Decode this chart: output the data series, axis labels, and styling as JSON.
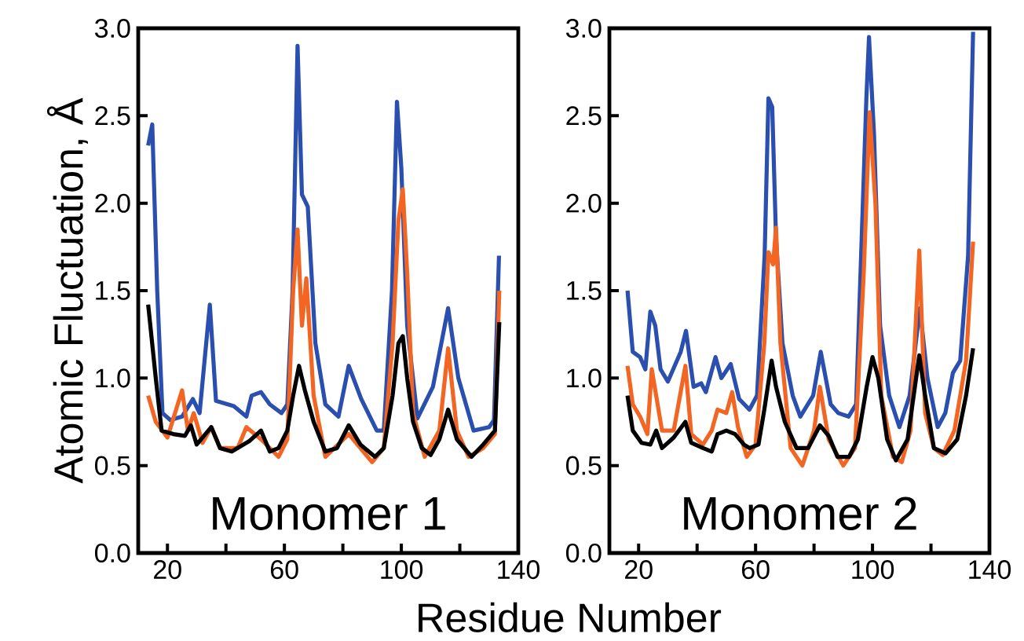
{
  "chart_data": [
    {
      "type": "line",
      "ylabel": "Atomic Fluctuation, Å",
      "xlabel": "Residue Number",
      "annotations": [
        "Monomer 1"
      ],
      "xlim": [
        10,
        140
      ],
      "ylim": [
        0,
        3
      ],
      "xticks": [
        20,
        {
          "value": 40,
          "label": null
        },
        60,
        {
          "value": 80,
          "label": null
        },
        100,
        {
          "value": 120,
          "label": null
        },
        140
      ],
      "yticks": [
        {
          "value": 0,
          "label": "0.0"
        },
        {
          "value": 0.5,
          "label": "0.5"
        },
        {
          "value": 1,
          "label": "1.0"
        },
        {
          "value": 1.5,
          "label": "1.5"
        },
        {
          "value": 2,
          "label": "2.0"
        },
        {
          "value": 2.5,
          "label": "2.5"
        },
        {
          "value": 3,
          "label": "3.0"
        }
      ],
      "series": [
        {
          "color": "#2a4fae",
          "x": [
            13.4,
            14.8,
            16.5,
            18.3,
            21,
            25,
            28.7,
            31,
            34.5,
            36.6,
            42.7,
            47,
            48.8,
            52,
            55,
            59,
            61,
            62.8,
            64.5,
            66,
            68,
            70.6,
            74,
            78.5,
            82,
            86.3,
            91.6,
            94,
            96.8,
            98.5,
            100,
            102,
            105.5,
            110.8,
            116,
            119.5,
            124.7,
            130,
            131.7,
            133.4
          ],
          "values": [
            2.33,
            2.45,
            1.5,
            0.8,
            0.76,
            0.78,
            0.88,
            0.8,
            1.42,
            0.87,
            0.84,
            0.78,
            0.9,
            0.92,
            0.85,
            0.8,
            0.85,
            1.5,
            2.9,
            2.05,
            1.98,
            1.2,
            0.85,
            0.78,
            1.07,
            0.88,
            0.7,
            0.7,
            1.5,
            2.58,
            2.2,
            1.3,
            0.77,
            0.95,
            1.4,
            1.0,
            0.7,
            0.72,
            0.76,
            1.7
          ]
        },
        {
          "color": "#f26522",
          "x": [
            13.4,
            16,
            20,
            25,
            27,
            29,
            32,
            35,
            38,
            44,
            47,
            52,
            58,
            61,
            63,
            64.5,
            66,
            67.5,
            70,
            74,
            82,
            86,
            90,
            94,
            97,
            99,
            100.5,
            102,
            104,
            108,
            113,
            116,
            119,
            123,
            128,
            132,
            133.5
          ],
          "values": [
            0.9,
            0.75,
            0.66,
            0.93,
            0.7,
            0.8,
            0.63,
            0.72,
            0.6,
            0.6,
            0.72,
            0.65,
            0.55,
            0.65,
            1.5,
            1.85,
            1.3,
            1.57,
            0.9,
            0.55,
            0.68,
            0.6,
            0.52,
            0.6,
            1.2,
            1.9,
            2.08,
            1.6,
            0.8,
            0.55,
            0.7,
            1.17,
            0.7,
            0.55,
            0.6,
            0.68,
            1.5
          ]
        },
        {
          "color": "#000000",
          "x": [
            13.4,
            16,
            18,
            22,
            26,
            28,
            30,
            35,
            38,
            42,
            48,
            52,
            55,
            58,
            61,
            63,
            65,
            67,
            70,
            74,
            78,
            82,
            86,
            91,
            94,
            97,
            99,
            100.5,
            102,
            104,
            107,
            110,
            113,
            116,
            119,
            124,
            128,
            132,
            133.5
          ],
          "values": [
            1.42,
            1.0,
            0.7,
            0.68,
            0.67,
            0.73,
            0.62,
            0.72,
            0.6,
            0.58,
            0.64,
            0.7,
            0.58,
            0.6,
            0.7,
            0.9,
            1.07,
            0.93,
            0.75,
            0.58,
            0.6,
            0.73,
            0.62,
            0.55,
            0.6,
            0.9,
            1.2,
            1.24,
            1.0,
            0.75,
            0.6,
            0.56,
            0.65,
            0.82,
            0.65,
            0.55,
            0.62,
            0.7,
            1.32
          ]
        }
      ]
    },
    {
      "type": "line",
      "annotations": [
        "Monomer 2"
      ],
      "xlim": [
        10,
        140
      ],
      "ylim": [
        0,
        3
      ],
      "xticks": [
        20,
        {
          "value": 40,
          "label": null
        },
        60,
        {
          "value": 80,
          "label": null
        },
        100,
        {
          "value": 120,
          "label": null
        },
        140
      ],
      "yticks": [
        {
          "value": 0,
          "label": "0.0"
        },
        {
          "value": 0.5,
          "label": "0.5"
        },
        {
          "value": 1,
          "label": "1.0"
        },
        {
          "value": 1.5,
          "label": "1.5"
        },
        {
          "value": 2,
          "label": "2.0"
        },
        {
          "value": 2.5,
          "label": "2.5"
        },
        {
          "value": 3,
          "label": "3.0"
        }
      ],
      "series": [
        {
          "color": "#2a4fae",
          "x": [
            16.2,
            18,
            20.5,
            22.3,
            24,
            25.7,
            27.5,
            30,
            34.4,
            36.2,
            38.8,
            41.4,
            43,
            46.3,
            48.3,
            51.5,
            54.4,
            57.9,
            60.5,
            63.1,
            64.4,
            65.7,
            67,
            69.2,
            72.7,
            75.3,
            79.7,
            82.3,
            85.7,
            88.3,
            91.8,
            94.4,
            97.9,
            98.8,
            100.5,
            102.6,
            105.7,
            109.2,
            112.7,
            116.2,
            118.8,
            122.3,
            124.9,
            127.5,
            130,
            132.7,
            134.4
          ],
          "values": [
            1.5,
            1.15,
            1.12,
            1.05,
            1.38,
            1.3,
            1.05,
            0.98,
            1.15,
            1.27,
            0.95,
            0.97,
            0.92,
            1.12,
            1.0,
            1.08,
            0.88,
            0.82,
            0.9,
            1.7,
            2.6,
            2.55,
            1.8,
            1.2,
            0.9,
            0.78,
            0.9,
            1.15,
            0.85,
            0.8,
            0.78,
            0.85,
            2.6,
            2.95,
            2.4,
            1.3,
            0.9,
            0.72,
            0.9,
            1.4,
            1.0,
            0.72,
            0.8,
            1.03,
            1.1,
            1.7,
            2.98
          ]
        },
        {
          "color": "#f26522",
          "x": [
            16.2,
            18,
            20.5,
            23,
            24.5,
            26,
            28,
            32,
            36,
            38,
            42,
            45,
            47,
            50,
            52,
            54,
            57,
            60,
            63,
            64.4,
            66,
            67,
            68.5,
            72,
            76,
            80,
            82,
            85,
            90,
            94,
            97,
            99,
            101,
            103,
            107,
            110,
            113,
            116,
            118,
            121,
            124,
            128,
            132,
            134.4
          ],
          "values": [
            1.07,
            0.85,
            0.78,
            0.68,
            1.05,
            0.9,
            0.7,
            0.7,
            1.07,
            0.68,
            0.62,
            0.7,
            0.82,
            0.8,
            0.92,
            0.72,
            0.55,
            0.62,
            1.2,
            1.72,
            1.65,
            1.86,
            1.2,
            0.6,
            0.5,
            0.7,
            0.95,
            0.65,
            0.5,
            0.6,
            1.6,
            2.52,
            2.0,
            0.9,
            0.55,
            0.52,
            0.7,
            1.73,
            0.8,
            0.6,
            0.56,
            0.7,
            1.1,
            1.78
          ]
        },
        {
          "color": "#000000",
          "x": [
            16.2,
            18,
            21,
            24,
            26,
            28,
            32,
            36,
            38,
            42,
            45,
            47,
            50,
            53,
            56,
            58,
            61,
            63,
            65.5,
            67,
            70,
            74,
            78,
            82,
            85,
            88,
            92,
            95,
            98,
            100,
            102,
            105,
            108,
            112,
            114.5,
            116,
            118,
            121,
            125,
            129,
            132,
            134.4
          ],
          "values": [
            0.9,
            0.7,
            0.63,
            0.62,
            0.7,
            0.6,
            0.66,
            0.75,
            0.63,
            0.6,
            0.58,
            0.68,
            0.7,
            0.68,
            0.62,
            0.6,
            0.62,
            0.82,
            1.1,
            0.95,
            0.75,
            0.6,
            0.6,
            0.73,
            0.67,
            0.55,
            0.55,
            0.65,
            0.95,
            1.12,
            1.0,
            0.65,
            0.53,
            0.65,
            0.95,
            1.13,
            0.9,
            0.6,
            0.57,
            0.65,
            0.9,
            1.17
          ]
        }
      ]
    }
  ]
}
